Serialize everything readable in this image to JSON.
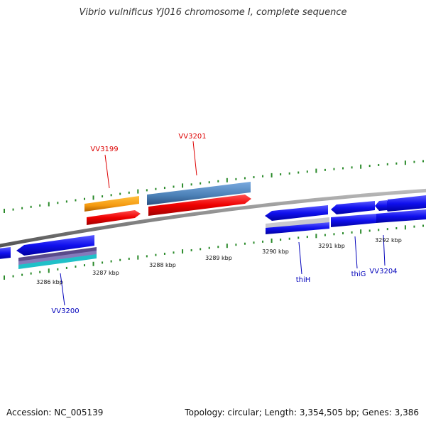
{
  "title": "Vibrio vulnificus YJ016 chromosome I, complete sequence",
  "footer": {
    "accession": "Accession: NC_005139",
    "summary": "Topology: circular; Length: 3,354,505 bp; Genes: 3,386"
  },
  "scale_ticks": [
    "3286 kbp",
    "3287 kbp",
    "3288 kbp",
    "3289 kbp",
    "3290 kbp",
    "3291 kbp",
    "3292 kbp"
  ],
  "gene_labels": [
    "VV3199",
    "VV3201",
    "VV3200",
    "thiH",
    "thiG",
    "VV3204"
  ],
  "colors": {
    "backbone": "#8a8a8a",
    "tick_green": "#2a8a2a",
    "label_red": "#dd0000",
    "label_blue": "#0000bb",
    "gene_blue": "#1010ee",
    "gene_red": "#ee0000",
    "gene_orange": "#f59a10",
    "gene_steel": "#4a7fb5"
  }
}
